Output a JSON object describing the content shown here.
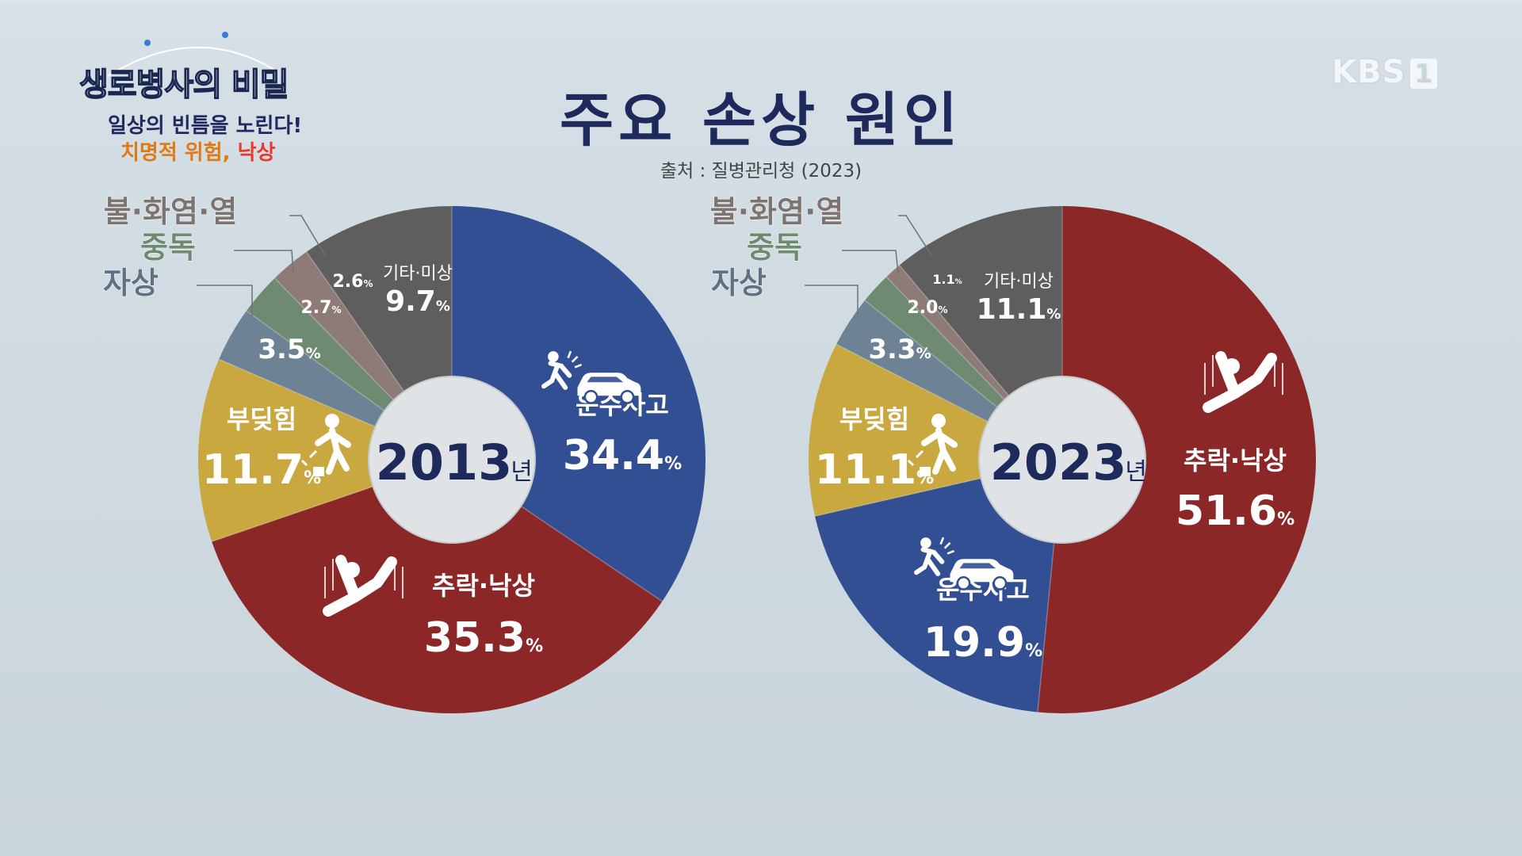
{
  "title": "주요 손상 원인",
  "source": "출처 : 질병관리청 (2023)",
  "program": {
    "title": "생로병사의 비밀",
    "subtitle1": "일상의 빈틈을 노린다!",
    "subtitle2_prefix": "치명적 위험, ",
    "subtitle2_highlight": "낙상"
  },
  "broadcaster": {
    "name": "KBS",
    "channel": "1"
  },
  "percent_sign": "%",
  "colors": {
    "transport": "#334f93",
    "fall": "#8b2727",
    "collision": "#c9a83f",
    "self_harm": "#6d8294",
    "poisoning": "#6e8a70",
    "fire": "#8e7b78",
    "other": "#5e5e5e",
    "title": "#1e2a5c"
  },
  "chart_data": [
    {
      "type": "pie",
      "year": "2013",
      "year_suffix": "년",
      "slices": [
        {
          "label": "운수사고",
          "value": 34.4,
          "color": "transport",
          "icon": "car-crash-icon"
        },
        {
          "label": "추락·낙상",
          "value": 35.3,
          "color": "fall",
          "icon": "falling-person-icon"
        },
        {
          "label": "부딪힘",
          "value": 11.7,
          "color": "collision",
          "icon": "collision-person-icon"
        },
        {
          "label": "자상",
          "value": 3.5,
          "color": "self_harm"
        },
        {
          "label": "중독",
          "value": 2.7,
          "color": "poisoning"
        },
        {
          "label": "불·화염·열",
          "value": 2.6,
          "color": "fire"
        },
        {
          "label": "기타·미상",
          "value": 9.7,
          "color": "other"
        }
      ]
    },
    {
      "type": "pie",
      "year": "2023",
      "year_suffix": "년",
      "slices": [
        {
          "label": "추락·낙상",
          "value": 51.6,
          "color": "fall",
          "icon": "falling-person-icon"
        },
        {
          "label": "운수사고",
          "value": 19.9,
          "color": "transport",
          "icon": "car-crash-icon"
        },
        {
          "label": "부딪힘",
          "value": 11.1,
          "color": "collision",
          "icon": "collision-person-icon"
        },
        {
          "label": "자상",
          "value": 3.3,
          "color": "self_harm"
        },
        {
          "label": "중독",
          "value": 2.0,
          "color": "poisoning"
        },
        {
          "label": "불·화염·열",
          "value": 1.1,
          "color": "fire"
        },
        {
          "label": "기타·미상",
          "value": 11.1,
          "color": "other"
        }
      ]
    }
  ]
}
